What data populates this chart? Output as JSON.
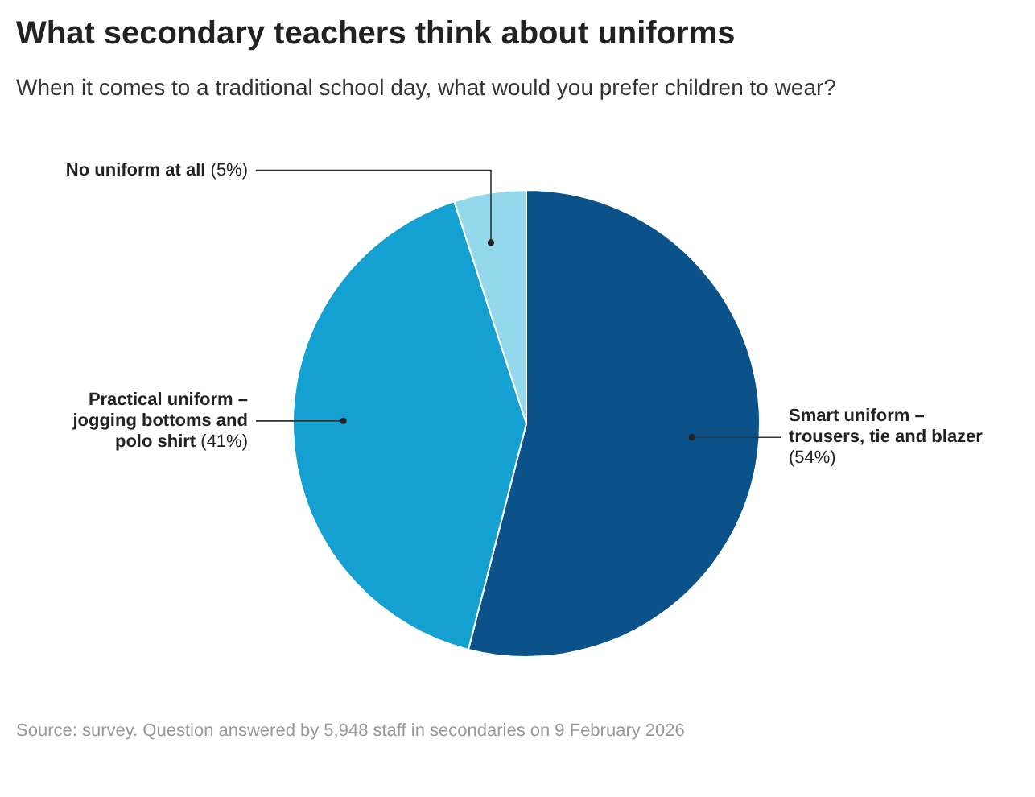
{
  "chart_data": {
    "type": "pie",
    "title": "What secondary teachers think about uniforms",
    "subtitle": "When it comes to a traditional school day, what would you prefer children to wear?",
    "categories": [
      "Smart uniform – trousers, tie and blazer",
      "Practical uniform – jogging bottoms and polo shirt",
      "No uniform at all"
    ],
    "values": [
      54,
      41,
      5
    ],
    "colors": [
      "#0a5289",
      "#14a0d0",
      "#94d8ec"
    ],
    "value_labels": [
      "(54%)",
      "(41%)",
      "(5%)"
    ],
    "annotations": [
      "Source: survey. Question answered by 5,948 staff in secondaries on 9 February 2026"
    ]
  }
}
